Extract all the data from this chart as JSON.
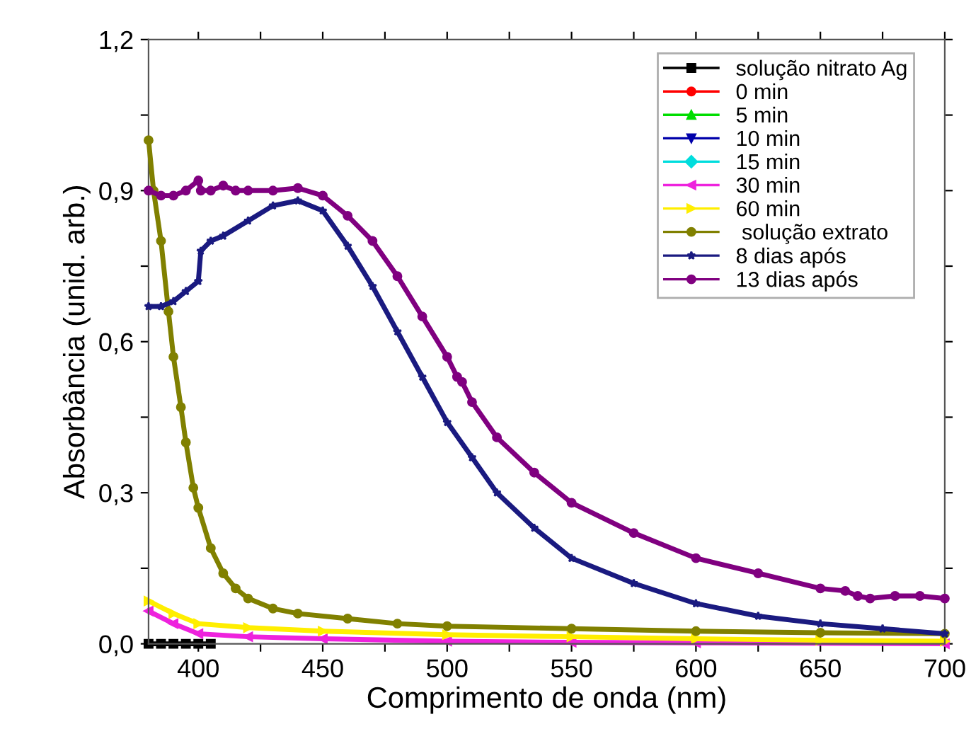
{
  "chart_data": {
    "type": "line",
    "xlabel": "Comprimento de onda (nm)",
    "ylabel": "Absorbância (unid. arb.)",
    "xlim": [
      380,
      700
    ],
    "ylim": [
      0,
      1.2
    ],
    "xticks": [
      400,
      {
        "value": 425,
        "label": null
      },
      450,
      {
        "value": 475,
        "label": null
      },
      500,
      {
        "value": 525,
        "label": null
      },
      550,
      {
        "value": 575,
        "label": null
      },
      600,
      {
        "value": 625,
        "label": null
      },
      650,
      {
        "value": 675,
        "label": null
      },
      700
    ],
    "yticks": [
      {
        "value": 0,
        "label": "0,0"
      },
      {
        "value": 0.15,
        "label": null
      },
      {
        "value": 0.3,
        "label": "0,3"
      },
      {
        "value": 0.45,
        "label": null
      },
      {
        "value": 0.6,
        "label": "0,6"
      },
      {
        "value": 0.75,
        "label": null
      },
      {
        "value": 0.9,
        "label": "0,9"
      },
      {
        "value": 1.05,
        "label": null
      },
      {
        "value": 1.2,
        "label": "1,2"
      }
    ],
    "grid": false,
    "legend": "top right",
    "line_style": "solid",
    "series": [
      {
        "name": "solução nitrato Ag",
        "color": "#000000",
        "marker": "square",
        "x": [
          380,
          385,
          390,
          395,
          400,
          405
        ],
        "values": [
          0.0,
          0.0,
          0.0,
          0.0,
          0.0,
          0.0
        ]
      },
      {
        "name": "0 min",
        "color": "#ff0000",
        "marker": "circle"
      },
      {
        "name": "5 min",
        "color": "#00dd00",
        "marker": "triangle"
      },
      {
        "name": "10 min",
        "color": "#0000aa",
        "marker": "triangle_down"
      },
      {
        "name": "15 min",
        "color": "#00dddd",
        "marker": "diamond"
      },
      {
        "name": "30 min",
        "color": "#ee22dd",
        "marker": "triangle_left",
        "x": [
          380,
          390,
          400,
          420,
          450,
          500,
          550,
          600,
          700
        ],
        "values": [
          0.065,
          0.04,
          0.02,
          0.014,
          0.01,
          0.005,
          0.003,
          0.002,
          0.0
        ]
      },
      {
        "name": "60 min",
        "color": "#ffee00",
        "marker": "triangle_right",
        "x": [
          380,
          390,
          400,
          420,
          450,
          500,
          550,
          600,
          650,
          700
        ],
        "values": [
          0.085,
          0.06,
          0.04,
          0.032,
          0.025,
          0.018,
          0.014,
          0.01,
          0.007,
          0.005
        ]
      },
      {
        "name": " solução extrato",
        "color": "#808000",
        "marker": "circle",
        "x": [
          380,
          382,
          385,
          388,
          390,
          393,
          395,
          398,
          400,
          405,
          410,
          415,
          420,
          430,
          440,
          460,
          480,
          500,
          550,
          600,
          650,
          700
        ],
        "values": [
          1.0,
          0.9,
          0.8,
          0.66,
          0.57,
          0.47,
          0.4,
          0.31,
          0.27,
          0.19,
          0.14,
          0.11,
          0.09,
          0.07,
          0.06,
          0.05,
          0.04,
          0.035,
          0.03,
          0.025,
          0.022,
          0.02
        ]
      },
      {
        "name": "8 dias após",
        "color": "#1a1a80",
        "marker": "star",
        "x": [
          380,
          385,
          390,
          395,
          400,
          401,
          405,
          410,
          420,
          430,
          440,
          450,
          460,
          470,
          480,
          490,
          500,
          510,
          520,
          535,
          550,
          575,
          600,
          625,
          650,
          675,
          700
        ],
        "values": [
          0.67,
          0.67,
          0.68,
          0.7,
          0.72,
          0.78,
          0.8,
          0.81,
          0.84,
          0.87,
          0.88,
          0.86,
          0.79,
          0.71,
          0.62,
          0.53,
          0.44,
          0.37,
          0.3,
          0.23,
          0.17,
          0.12,
          0.08,
          0.055,
          0.04,
          0.03,
          0.02
        ]
      },
      {
        "name": "13 dias após",
        "color": "#800080",
        "marker": "circle",
        "x": [
          380,
          385,
          390,
          395,
          400,
          401,
          405,
          410,
          415,
          420,
          430,
          440,
          450,
          460,
          470,
          480,
          490,
          500,
          504,
          506,
          510,
          520,
          535,
          550,
          575,
          600,
          625,
          650,
          660,
          665,
          670,
          680,
          690,
          700
        ],
        "values": [
          0.9,
          0.89,
          0.89,
          0.9,
          0.92,
          0.9,
          0.9,
          0.91,
          0.9,
          0.9,
          0.9,
          0.905,
          0.89,
          0.85,
          0.8,
          0.73,
          0.65,
          0.57,
          0.53,
          0.52,
          0.48,
          0.41,
          0.34,
          0.28,
          0.22,
          0.17,
          0.14,
          0.11,
          0.105,
          0.095,
          0.09,
          0.095,
          0.095,
          0.09
        ]
      }
    ]
  }
}
